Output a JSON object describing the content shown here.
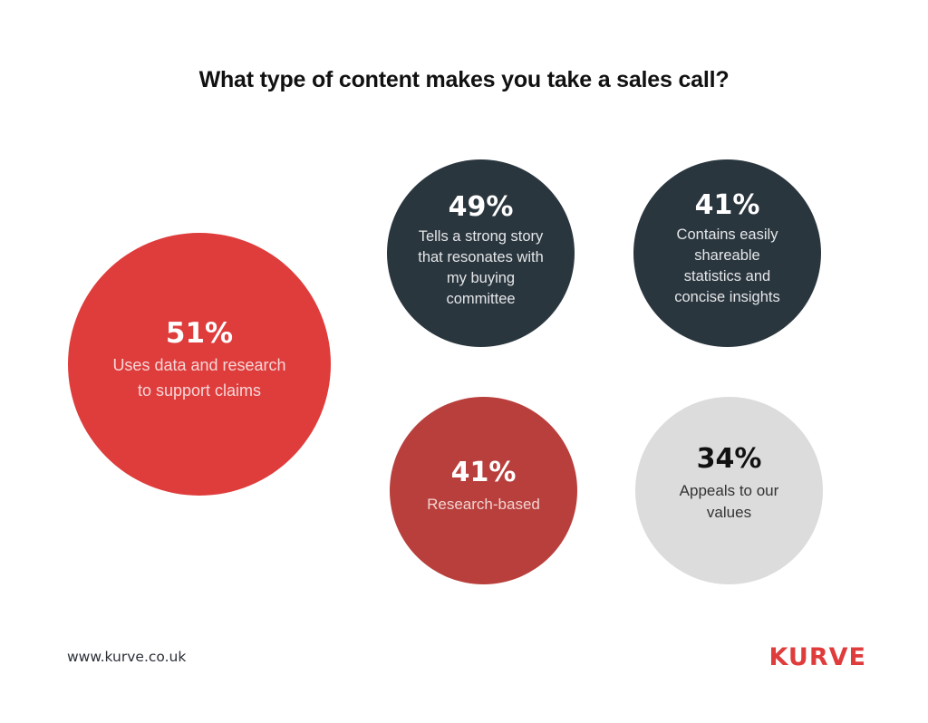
{
  "header": {
    "title": "What type of content makes you take a sales call?"
  },
  "bubbles": [
    {
      "value": "51%",
      "label": "Uses data and research\nto support claims",
      "color": "#df3c3c"
    },
    {
      "value": "49%",
      "label": "Tells a strong story\nthat resonates with\nmy buying\ncommittee",
      "color": "#2a363e"
    },
    {
      "value": "41%",
      "label": "Contains easily\nshareable\nstatistics and\nconcise insights",
      "color": "#2a363e"
    },
    {
      "value": "41%",
      "label": "Research-based",
      "color": "#b83f3c"
    },
    {
      "value": "34%",
      "label": "Appeals to our\nvalues",
      "color": "#dcdcdc"
    }
  ],
  "footer": {
    "url": "www.kurve.co.uk",
    "logo": "KURVE",
    "brand_color": "#df3c3c"
  },
  "chart_data": {
    "type": "bubble",
    "title": "What type of content makes you take a sales call?",
    "categories": [
      "Uses data and research to support claims",
      "Tells a strong story that resonates with my buying committee",
      "Contains easily shareable statistics and concise insights",
      "Research-based",
      "Appeals to our values"
    ],
    "values": [
      51,
      49,
      41,
      41,
      34
    ],
    "unit": "%",
    "legend": "none",
    "grid": false
  }
}
